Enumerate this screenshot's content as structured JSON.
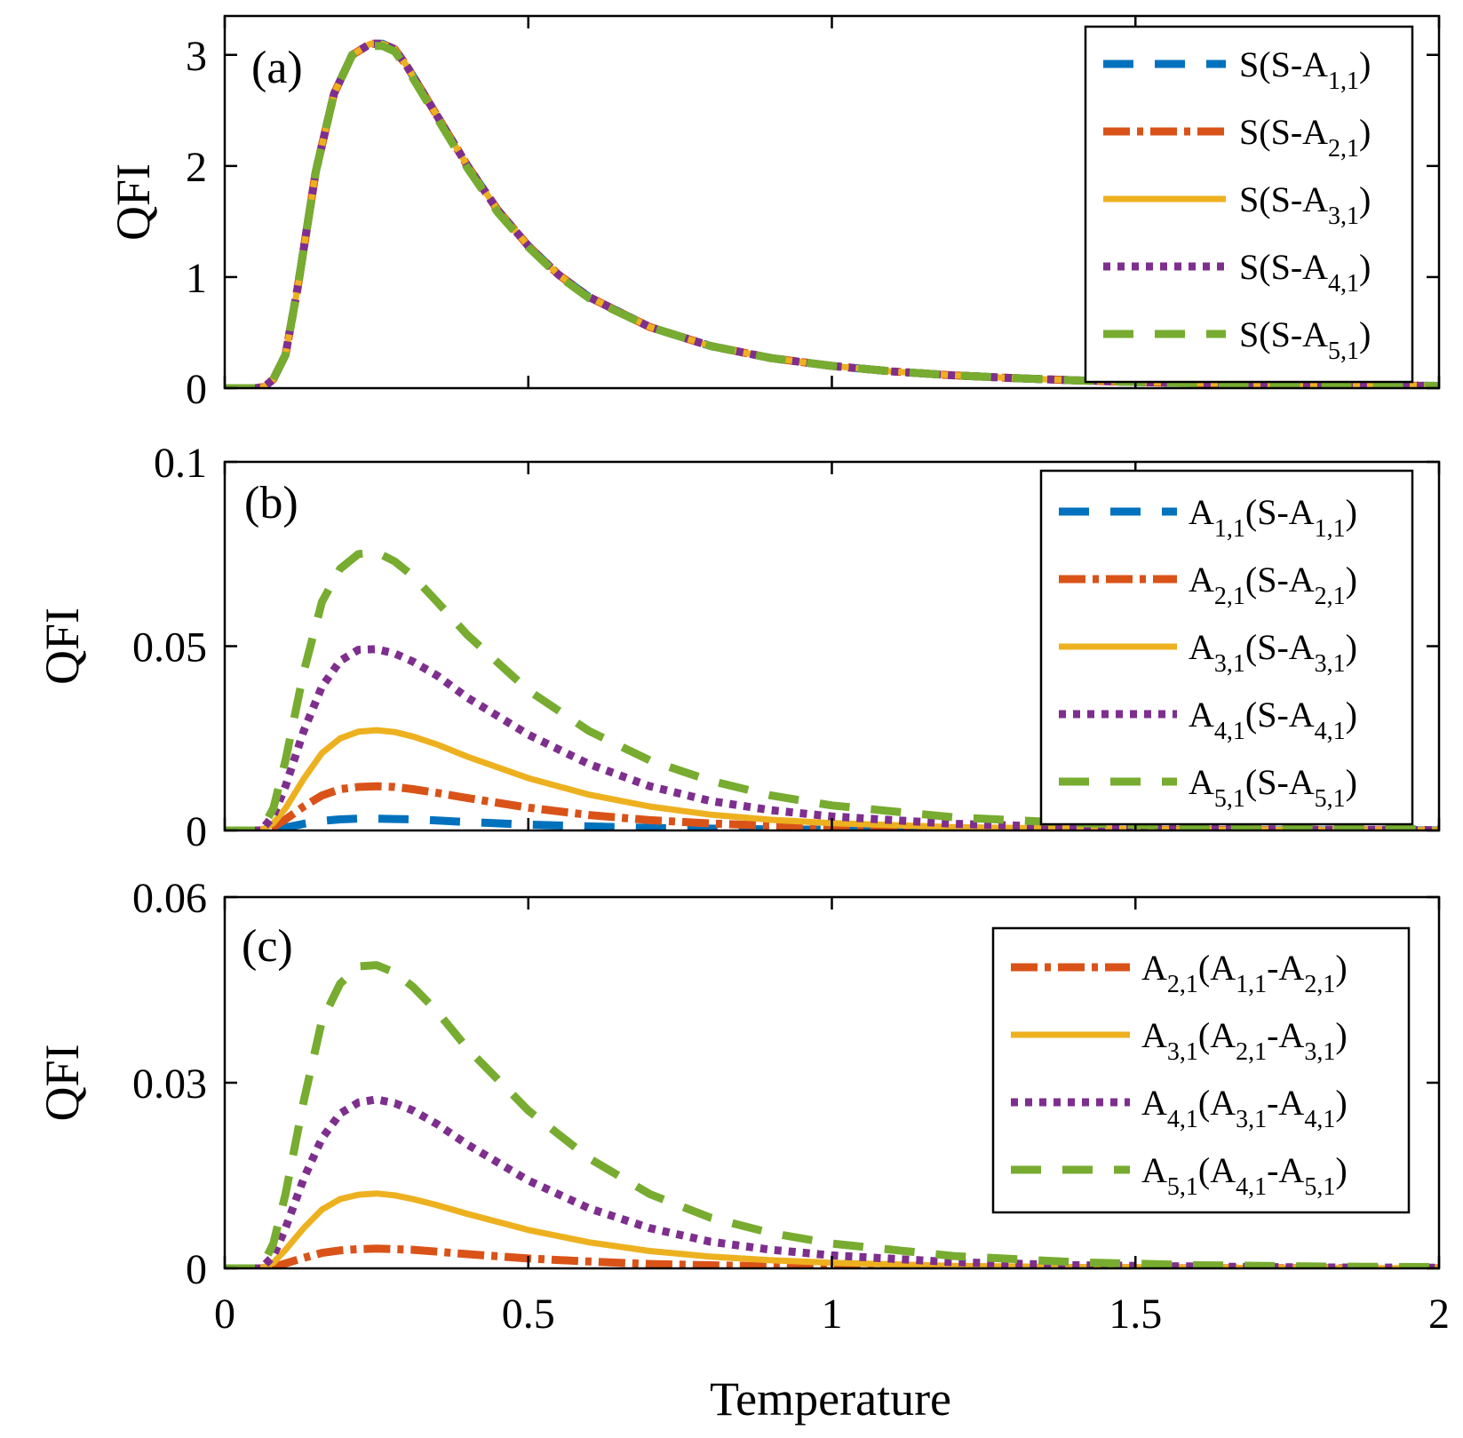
{
  "figure": {
    "xlabel": "Temperature",
    "x_tick_labels": [
      "0",
      "0.5",
      "1",
      "1.5",
      "2"
    ]
  },
  "colors": {
    "blue": "#0072BD",
    "orange": "#D95319",
    "yellow": "#EDB120",
    "purple": "#7E2F8E",
    "green": "#77AC30"
  },
  "chart_data": [
    {
      "type": "line",
      "panel_tag": "(a)",
      "ylabel": "QFI",
      "xlim": [
        0,
        2
      ],
      "ylim": [
        0,
        3.35
      ],
      "y_ticks": [
        0,
        1,
        2,
        3
      ],
      "y_tick_labels": [
        "0",
        "1",
        "2",
        "3"
      ],
      "x": [
        0,
        0.05,
        0.065,
        0.08,
        0.1,
        0.12,
        0.15,
        0.18,
        0.21,
        0.24,
        0.26,
        0.28,
        0.3,
        0.35,
        0.4,
        0.45,
        0.5,
        0.55,
        0.6,
        0.7,
        0.8,
        0.9,
        1.0,
        1.1,
        1.2,
        1.3,
        1.4,
        1.5,
        1.6,
        1.7,
        1.8,
        1.9,
        2.0
      ],
      "series": [
        {
          "name": "S(S-A1,1)",
          "main": "S(S-A",
          "sub": "1,1",
          "tail": ")",
          "color": "blue",
          "dash": "dashed",
          "values": [
            0,
            0,
            0.01,
            0.08,
            0.3,
            0.9,
            1.95,
            2.65,
            3.0,
            3.1,
            3.1,
            3.05,
            2.9,
            2.45,
            2.0,
            1.6,
            1.28,
            1.02,
            0.82,
            0.55,
            0.38,
            0.27,
            0.2,
            0.15,
            0.115,
            0.09,
            0.07,
            0.055,
            0.045,
            0.037,
            0.03,
            0.025,
            0.02
          ]
        },
        {
          "name": "S(S-A2,1)",
          "main": "S(S-A",
          "sub": "2,1",
          "tail": ")",
          "color": "orange",
          "dash": "dashdot",
          "values": [
            0,
            0,
            0.01,
            0.08,
            0.3,
            0.9,
            1.95,
            2.65,
            3.0,
            3.1,
            3.1,
            3.05,
            2.9,
            2.45,
            2.0,
            1.6,
            1.28,
            1.02,
            0.82,
            0.55,
            0.38,
            0.27,
            0.2,
            0.15,
            0.115,
            0.09,
            0.07,
            0.055,
            0.045,
            0.037,
            0.03,
            0.025,
            0.02
          ]
        },
        {
          "name": "S(S-A3,1)",
          "main": "S(S-A",
          "sub": "3,1",
          "tail": ")",
          "color": "yellow",
          "dash": "solid",
          "values": [
            0,
            0,
            0.01,
            0.08,
            0.3,
            0.9,
            1.95,
            2.65,
            3.0,
            3.1,
            3.1,
            3.05,
            2.9,
            2.45,
            2.0,
            1.6,
            1.28,
            1.02,
            0.82,
            0.55,
            0.38,
            0.27,
            0.2,
            0.15,
            0.115,
            0.09,
            0.07,
            0.055,
            0.045,
            0.037,
            0.03,
            0.025,
            0.02
          ]
        },
        {
          "name": "S(S-A4,1)",
          "main": "S(S-A",
          "sub": "4,1",
          "tail": ")",
          "color": "purple",
          "dash": "dotted",
          "values": [
            0,
            0,
            0.01,
            0.08,
            0.3,
            0.9,
            1.95,
            2.65,
            3.0,
            3.1,
            3.1,
            3.05,
            2.9,
            2.45,
            2.0,
            1.6,
            1.28,
            1.02,
            0.82,
            0.55,
            0.38,
            0.27,
            0.2,
            0.15,
            0.115,
            0.09,
            0.07,
            0.055,
            0.045,
            0.037,
            0.03,
            0.025,
            0.02
          ]
        },
        {
          "name": "S(S-A5,1)",
          "main": "S(S-A",
          "sub": "5,1",
          "tail": ")",
          "color": "green",
          "dash": "dashed",
          "values": [
            0,
            0,
            0.01,
            0.08,
            0.3,
            0.9,
            1.95,
            2.65,
            3.0,
            3.08,
            3.08,
            3.03,
            2.88,
            2.43,
            1.98,
            1.58,
            1.27,
            1.01,
            0.81,
            0.55,
            0.38,
            0.27,
            0.2,
            0.15,
            0.115,
            0.09,
            0.07,
            0.055,
            0.045,
            0.037,
            0.03,
            0.025,
            0.02
          ]
        }
      ]
    },
    {
      "type": "line",
      "panel_tag": "(b)",
      "ylabel": "QFI",
      "xlim": [
        0,
        2
      ],
      "ylim": [
        0,
        0.1
      ],
      "y_ticks": [
        0,
        0.05,
        0.1
      ],
      "y_tick_labels": [
        "0",
        "0.05",
        "0.1"
      ],
      "x": [
        0,
        0.06,
        0.08,
        0.1,
        0.13,
        0.16,
        0.19,
        0.22,
        0.25,
        0.28,
        0.31,
        0.35,
        0.4,
        0.5,
        0.6,
        0.7,
        0.8,
        0.9,
        1.0,
        1.2,
        1.4,
        1.6,
        1.8,
        2.0
      ],
      "series": [
        {
          "name": "A1,1(S-A1,1)",
          "main": "A",
          "sub": "1,1",
          "mid": "(S-A",
          "sub2": "1,1",
          "tail": ")",
          "color": "blue",
          "dash": "dashed",
          "values": [
            0,
            0,
            0.0002,
            0.0008,
            0.0018,
            0.0026,
            0.003,
            0.0032,
            0.0032,
            0.0031,
            0.003,
            0.0027,
            0.0023,
            0.0016,
            0.0011,
            0.0007,
            0.0005,
            0.0003,
            0.0002,
            0.0001,
            5e-05,
            2e-05,
            1e-05,
            0
          ]
        },
        {
          "name": "A2,1(S-A2,1)",
          "main": "A",
          "sub": "2,1",
          "mid": "(S-A",
          "sub2": "2,1",
          "tail": ")",
          "color": "orange",
          "dash": "dashdot",
          "values": [
            0,
            0,
            0.001,
            0.003,
            0.0065,
            0.0095,
            0.0112,
            0.0118,
            0.012,
            0.0118,
            0.0112,
            0.0102,
            0.0088,
            0.0062,
            0.0042,
            0.0028,
            0.0019,
            0.0013,
            0.0009,
            0.0004,
            0.0002,
            0.0001,
            5e-05,
            2e-05
          ]
        },
        {
          "name": "A3,1(S-A3,1)",
          "main": "A",
          "sub": "3,1",
          "mid": "(S-A",
          "sub2": "3,1",
          "tail": ")",
          "color": "yellow",
          "dash": "solid",
          "values": [
            0,
            0,
            0.002,
            0.006,
            0.014,
            0.021,
            0.025,
            0.0268,
            0.0272,
            0.0267,
            0.0255,
            0.0233,
            0.02,
            0.0142,
            0.0097,
            0.0065,
            0.0043,
            0.0029,
            0.002,
            0.0009,
            0.0005,
            0.0002,
            0.0001,
            5e-05
          ]
        },
        {
          "name": "A4,1(S-A4,1)",
          "main": "A",
          "sub": "4,1",
          "mid": "(S-A",
          "sub2": "4,1",
          "tail": ")",
          "color": "purple",
          "dash": "dotted",
          "values": [
            0,
            0,
            0.004,
            0.012,
            0.027,
            0.039,
            0.046,
            0.049,
            0.0492,
            0.048,
            0.0458,
            0.042,
            0.036,
            0.026,
            0.018,
            0.012,
            0.008,
            0.0055,
            0.0038,
            0.0018,
            0.0009,
            0.0004,
            0.0002,
            0.0001
          ]
        },
        {
          "name": "A5,1(S-A5,1)",
          "main": "A",
          "sub": "5,1",
          "mid": "(S-A",
          "sub2": "5,1",
          "tail": ")",
          "color": "green",
          "dash": "dashed",
          "values": [
            0,
            0,
            0.006,
            0.019,
            0.043,
            0.062,
            0.071,
            0.075,
            0.0755,
            0.073,
            0.069,
            0.062,
            0.053,
            0.038,
            0.027,
            0.019,
            0.0135,
            0.0095,
            0.0068,
            0.0036,
            0.002,
            0.0011,
            0.0006,
            0.0003
          ]
        }
      ]
    },
    {
      "type": "line",
      "panel_tag": "(c)",
      "ylabel": "QFI",
      "xlim": [
        0,
        2
      ],
      "ylim": [
        0,
        0.06
      ],
      "y_ticks": [
        0,
        0.03,
        0.06
      ],
      "y_tick_labels": [
        "0",
        "0.03",
        "0.06"
      ],
      "x": [
        0,
        0.06,
        0.08,
        0.1,
        0.13,
        0.16,
        0.19,
        0.22,
        0.25,
        0.28,
        0.31,
        0.35,
        0.4,
        0.5,
        0.6,
        0.7,
        0.8,
        0.9,
        1.0,
        1.2,
        1.4,
        1.6,
        1.8,
        2.0
      ],
      "series": [
        {
          "name": "A2,1(A1,1-A2,1)",
          "main": "A",
          "sub": "2,1",
          "mid": "(A",
          "sub2": "1,1",
          "mid2": "-A",
          "sub3": "2,1",
          "tail": ")",
          "color": "orange",
          "dash": "dashdot",
          "values": [
            0,
            0,
            0.0002,
            0.0008,
            0.0017,
            0.0025,
            0.0029,
            0.0031,
            0.0032,
            0.0031,
            0.003,
            0.0027,
            0.0023,
            0.0016,
            0.0011,
            0.0007,
            0.0005,
            0.0003,
            0.0002,
            0.0001,
            5e-05,
            2e-05,
            1e-05,
            0
          ]
        },
        {
          "name": "A3,1(A2,1-A3,1)",
          "main": "A",
          "sub": "3,1",
          "mid": "(A",
          "sub2": "2,1",
          "mid2": "-A",
          "sub3": "3,1",
          "tail": ")",
          "color": "yellow",
          "dash": "solid",
          "values": [
            0,
            0,
            0.0009,
            0.003,
            0.0065,
            0.0095,
            0.0112,
            0.0119,
            0.0121,
            0.0118,
            0.0112,
            0.0102,
            0.0088,
            0.0062,
            0.0042,
            0.0028,
            0.0019,
            0.0013,
            0.0009,
            0.0004,
            0.0002,
            0.0001,
            5e-05,
            2e-05
          ]
        },
        {
          "name": "A4,1(A3,1-A4,1)",
          "main": "A",
          "sub": "4,1",
          "mid": "(A",
          "sub2": "3,1",
          "mid2": "-A",
          "sub3": "4,1",
          "tail": ")",
          "color": "purple",
          "dash": "dotted",
          "values": [
            0,
            0,
            0.002,
            0.0065,
            0.0145,
            0.021,
            0.025,
            0.0268,
            0.0273,
            0.0267,
            0.0255,
            0.0233,
            0.02,
            0.0142,
            0.0097,
            0.0065,
            0.0043,
            0.003,
            0.0021,
            0.001,
            0.0005,
            0.0003,
            0.00015,
            0.0001
          ]
        },
        {
          "name": "A5,1(A4,1-A5,1)",
          "main": "A",
          "sub": "5,1",
          "mid": "(A",
          "sub2": "4,1",
          "mid2": "-A",
          "sub3": "5,1",
          "tail": ")",
          "color": "green",
          "dash": "dashed",
          "values": [
            0,
            0,
            0.004,
            0.012,
            0.027,
            0.04,
            0.046,
            0.0488,
            0.049,
            0.0478,
            0.0455,
            0.0415,
            0.0355,
            0.0255,
            0.0178,
            0.012,
            0.0082,
            0.0057,
            0.004,
            0.002,
            0.001,
            0.0005,
            0.0003,
            0.0002
          ]
        }
      ]
    }
  ]
}
